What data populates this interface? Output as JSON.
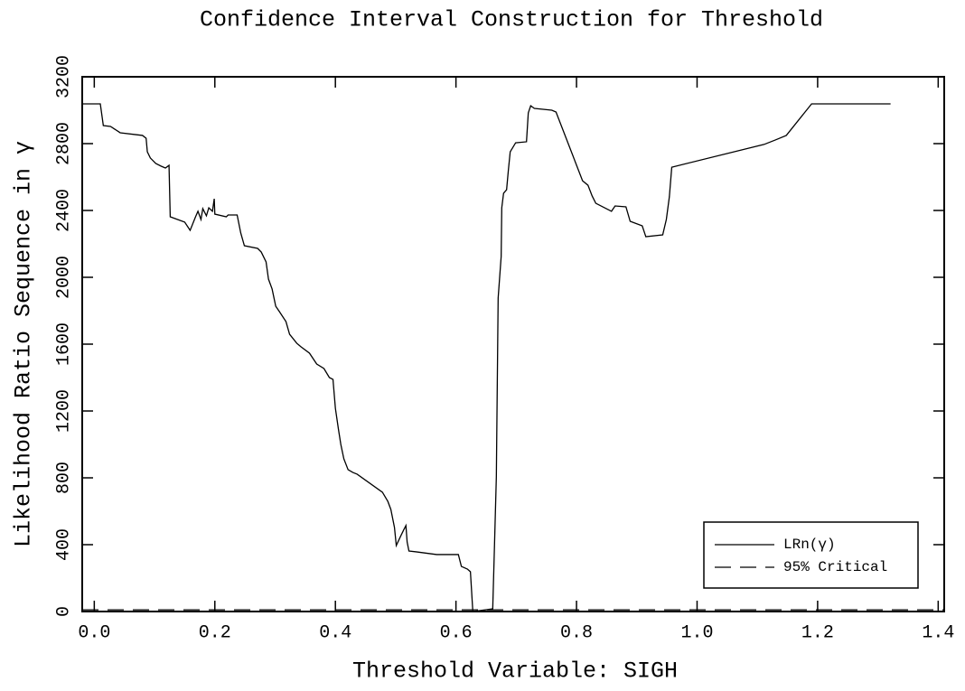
{
  "chart_data": {
    "type": "line",
    "title": "Confidence Interval Construction for Threshold",
    "xlabel": "Threshold Variable: SIGH",
    "ylabel": "Likelihood Ratio Sequence in γ",
    "xlim": [
      -0.02,
      1.41
    ],
    "ylim": [
      0,
      3200
    ],
    "xticks": [
      {
        "value": 0,
        "label": "0.0"
      },
      0.2,
      0.4,
      0.6,
      0.8,
      {
        "value": 1,
        "label": "1.0"
      },
      1.2,
      1.4
    ],
    "yticks": [
      0,
      400,
      800,
      1200,
      1600,
      2000,
      2400,
      2800,
      3200
    ],
    "legend": "lower right",
    "series": [
      {
        "name": "LRn(γ)",
        "color": "#000000",
        "dash": "solid",
        "x": [
          -0.02,
          0.01,
          0.015,
          0.027,
          0.043,
          0.08,
          0.086,
          0.088,
          0.093,
          0.102,
          0.111,
          0.118,
          0.124,
          0.126,
          0.15,
          0.159,
          0.168,
          0.172,
          0.177,
          0.18,
          0.186,
          0.19,
          0.196,
          0.199,
          0.2,
          0.219,
          0.222,
          0.237,
          0.243,
          0.249,
          0.271,
          0.277,
          0.285,
          0.289,
          0.295,
          0.301,
          0.307,
          0.318,
          0.324,
          0.336,
          0.343,
          0.357,
          0.369,
          0.381,
          0.39,
          0.396,
          0.4,
          0.405,
          0.409,
          0.414,
          0.421,
          0.429,
          0.436,
          0.478,
          0.487,
          0.492,
          0.498,
          0.501,
          0.508,
          0.513,
          0.517,
          0.519,
          0.522,
          0.534,
          0.568,
          0.604,
          0.609,
          0.619,
          0.624,
          0.628,
          0.661,
          0.664,
          0.667,
          0.67,
          0.675,
          0.676,
          0.679,
          0.684,
          0.687,
          0.69,
          0.699,
          0.717,
          0.72,
          0.724,
          0.73,
          0.759,
          0.766,
          0.81,
          0.819,
          0.826,
          0.832,
          0.858,
          0.864,
          0.882,
          0.889,
          0.909,
          0.915,
          0.943,
          0.949,
          0.954,
          0.958,
          1.111,
          1.13,
          1.148,
          1.19,
          1.321
        ],
        "values": [
          3038,
          3038,
          2908,
          2903,
          2865,
          2849,
          2832,
          2751,
          2714,
          2681,
          2665,
          2654,
          2670,
          2362,
          2330,
          2281,
          2362,
          2395,
          2346,
          2411,
          2368,
          2416,
          2395,
          2470,
          2378,
          2362,
          2373,
          2373,
          2265,
          2189,
          2173,
          2151,
          2092,
          1989,
          1930,
          1827,
          1795,
          1735,
          1659,
          1605,
          1584,
          1546,
          1481,
          1454,
          1400,
          1389,
          1216,
          1092,
          1000,
          914,
          849,
          832,
          822,
          714,
          659,
          611,
          503,
          395,
          449,
          486,
          514,
          416,
          362,
          357,
          341,
          341,
          270,
          254,
          238,
          0,
          16,
          405,
          805,
          1876,
          2124,
          2416,
          2503,
          2524,
          2643,
          2751,
          2805,
          2811,
          2984,
          3027,
          3011,
          3000,
          2989,
          2578,
          2551,
          2486,
          2443,
          2395,
          2427,
          2422,
          2335,
          2308,
          2243,
          2254,
          2346,
          2481,
          2659,
          2795,
          2822,
          2849,
          3038,
          3038
        ]
      },
      {
        "name": "95% Critical",
        "color": "#000000",
        "dash": "dashed",
        "x": [
          -0.02,
          1.41
        ],
        "values": [
          10,
          10
        ]
      }
    ]
  }
}
